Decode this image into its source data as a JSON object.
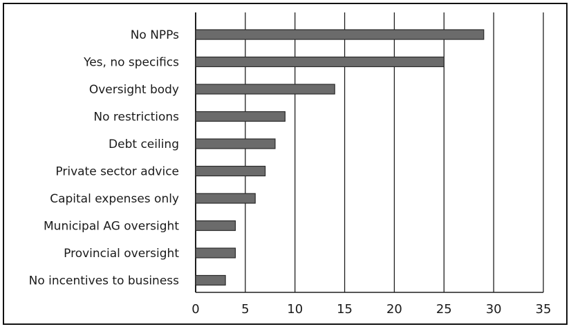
{
  "chart_data": {
    "type": "bar",
    "orientation": "horizontal",
    "categories": [
      "No NPPs",
      "Yes, no specifics",
      "Oversight body",
      "No restrictions",
      "Debt ceiling",
      "Private sector advice",
      "Capital expenses only",
      "Municipal AG oversight",
      "Provincial oversight",
      "No incentives to business"
    ],
    "values": [
      29,
      25,
      14,
      9,
      8,
      7,
      6,
      4,
      4,
      3
    ],
    "xlim": [
      0,
      35
    ],
    "xticks": [
      "0",
      "5",
      "10",
      "15",
      "20",
      "25",
      "30",
      "35"
    ],
    "xtick_values": [
      0,
      5,
      10,
      15,
      20,
      25,
      30,
      35
    ],
    "grid": "vertical",
    "legend": "none",
    "title": "",
    "xlabel": "",
    "ylabel": "",
    "colors": {
      "bar_fill": "#6b6b6b",
      "bar_stroke": "#2a2a2a",
      "grid": "#1e1e1e",
      "frame": "#111111",
      "text": "#1a1a1a"
    }
  }
}
